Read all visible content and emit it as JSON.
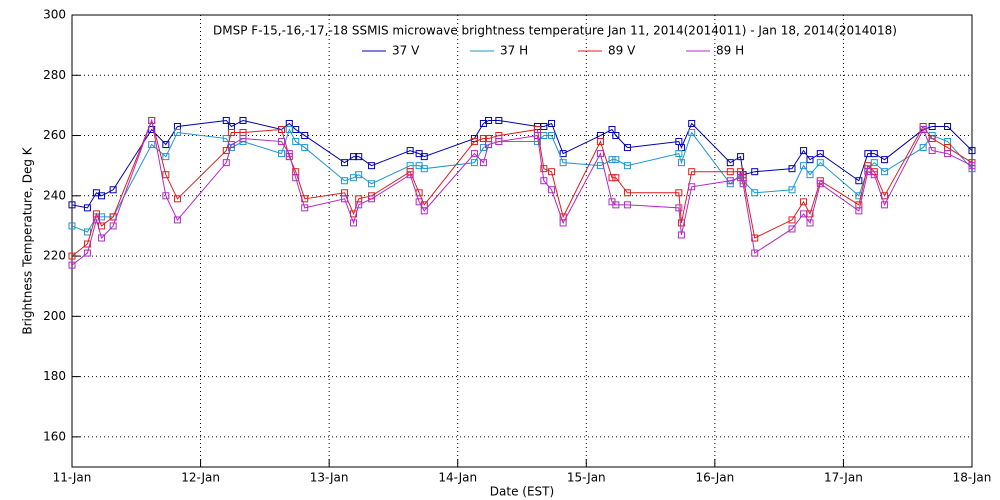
{
  "chart_data": {
    "type": "line",
    "title": "DMSP F-15,-16,-17,-18 SSMIS microwave brightness temperature Jan 11, 2014(2014011) - Jan 18, 2014(2014018)",
    "x_label": "Date (EST)",
    "y_label": "Brightness Temperature, Deg K",
    "xlim": [
      0,
      7
    ],
    "xticks": [
      {
        "value": 0,
        "label": "11-Jan"
      },
      {
        "value": 1,
        "label": "12-Jan"
      },
      {
        "value": 2,
        "label": "13-Jan"
      },
      {
        "value": 3,
        "label": "14-Jan"
      },
      {
        "value": 4,
        "label": "15-Jan"
      },
      {
        "value": 5,
        "label": "16-Jan"
      },
      {
        "value": 6,
        "label": "17-Jan"
      },
      {
        "value": 7,
        "label": "18-Jan"
      }
    ],
    "ylim": [
      150,
      300
    ],
    "yticks": [
      160,
      180,
      200,
      220,
      240,
      260,
      280,
      300
    ],
    "grid": true,
    "x": [
      0,
      0.12,
      0.19,
      0.23,
      0.32,
      0.62,
      0.73,
      0.82,
      1.2,
      1.24,
      1.33,
      1.63,
      1.69,
      1.74,
      1.81,
      2.12,
      2.19,
      2.23,
      2.33,
      2.63,
      2.7,
      2.74,
      3.13,
      3.2,
      3.24,
      3.32,
      3.62,
      3.67,
      3.73,
      3.82,
      4.11,
      4.2,
      4.23,
      4.32,
      4.72,
      4.74,
      4.82,
      5.12,
      5.2,
      5.22,
      5.31,
      5.6,
      5.69,
      5.74,
      5.82,
      6.12,
      6.19,
      6.24,
      6.32,
      6.62,
      6.69,
      6.81,
      7
    ],
    "series": [
      {
        "name": "37 V",
        "color": "#0000b4",
        "values": [
          237,
          236,
          241,
          240,
          242,
          262,
          257,
          263,
          265,
          263,
          265,
          262,
          264,
          262,
          260,
          251,
          253,
          253,
          250,
          255,
          254,
          253,
          259,
          264,
          265,
          265,
          263,
          263,
          264,
          254,
          260,
          262,
          260,
          256,
          258,
          256,
          264,
          251,
          253,
          247,
          248,
          249,
          255,
          252,
          254,
          245,
          254,
          254,
          252,
          262,
          263,
          263,
          255
        ]
      },
      {
        "name": "37 H",
        "color": "#1e96d2",
        "values": [
          230,
          228,
          233,
          233,
          233,
          257,
          253,
          261,
          259,
          256,
          258,
          254,
          262,
          258,
          256,
          245,
          246,
          247,
          244,
          250,
          250,
          249,
          251,
          256,
          257,
          258,
          258,
          260,
          260,
          251,
          250,
          252,
          252,
          250,
          254,
          251,
          261,
          244,
          247,
          245,
          241,
          242,
          250,
          247,
          251,
          240,
          249,
          251,
          248,
          256,
          260,
          258,
          249
        ]
      },
      {
        "name": "89 V",
        "color": "#dc1e1e",
        "values": [
          220,
          224,
          234,
          230,
          233,
          265,
          247,
          239,
          255,
          261,
          261,
          262,
          253,
          248,
          239,
          241,
          234,
          239,
          240,
          248,
          241,
          237,
          258,
          259,
          259,
          260,
          262,
          249,
          248,
          233,
          258,
          246,
          246,
          241,
          241,
          231,
          248,
          248,
          248,
          246,
          226,
          232,
          238,
          234,
          245,
          237,
          250,
          248,
          240,
          263,
          259,
          256,
          251
        ]
      },
      {
        "name": "89 H",
        "color": "#b428c8",
        "values": [
          217,
          221,
          232,
          226,
          230,
          265,
          240,
          232,
          251,
          257,
          259,
          258,
          254,
          246,
          236,
          239,
          231,
          237,
          239,
          247,
          238,
          235,
          254,
          251,
          257,
          258,
          260,
          245,
          242,
          231,
          254,
          238,
          237,
          237,
          236,
          227,
          243,
          245,
          246,
          244,
          221,
          229,
          234,
          231,
          244,
          235,
          248,
          247,
          237,
          262,
          255,
          254,
          250
        ]
      }
    ]
  }
}
